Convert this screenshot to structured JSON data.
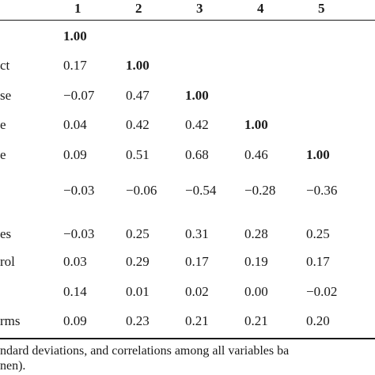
{
  "table": {
    "column_headers": [
      "1",
      "2",
      "3",
      "4",
      "5"
    ],
    "rows": [
      {
        "label": "",
        "values": [
          "1.00",
          "",
          "",
          "",
          ""
        ]
      },
      {
        "label": "ct",
        "values": [
          "0.17",
          "1.00",
          "",
          "",
          ""
        ]
      },
      {
        "label": "se",
        "values": [
          "−0.07",
          "0.47",
          "1.00",
          "",
          ""
        ]
      },
      {
        "label": "e",
        "values": [
          "0.04",
          "0.42",
          "0.42",
          "1.00",
          ""
        ]
      },
      {
        "label": "e",
        "values": [
          "0.09",
          "0.51",
          "0.68",
          "0.46",
          "1.00"
        ]
      },
      {
        "label": "",
        "values": [
          "−0.03",
          "−0.06",
          "−0.54",
          "−0.28",
          "−0.36"
        ]
      },
      {
        "label": "es",
        "values": [
          "−0.03",
          "0.25",
          "0.31",
          "0.28",
          "0.25"
        ]
      },
      {
        "label": "rol",
        "values": [
          "0.03",
          "0.29",
          "0.17",
          "0.19",
          "0.17"
        ]
      },
      {
        "label": "",
        "values": [
          "0.14",
          "0.01",
          "0.02",
          "0.00",
          "−0.02"
        ]
      },
      {
        "label": "rms",
        "values": [
          "0.09",
          "0.23",
          "0.21",
          "0.21",
          "0.20"
        ]
      }
    ]
  },
  "caption": {
    "line1": "ndard deviations, and correlations among all variables ba",
    "line2": "nen)."
  }
}
